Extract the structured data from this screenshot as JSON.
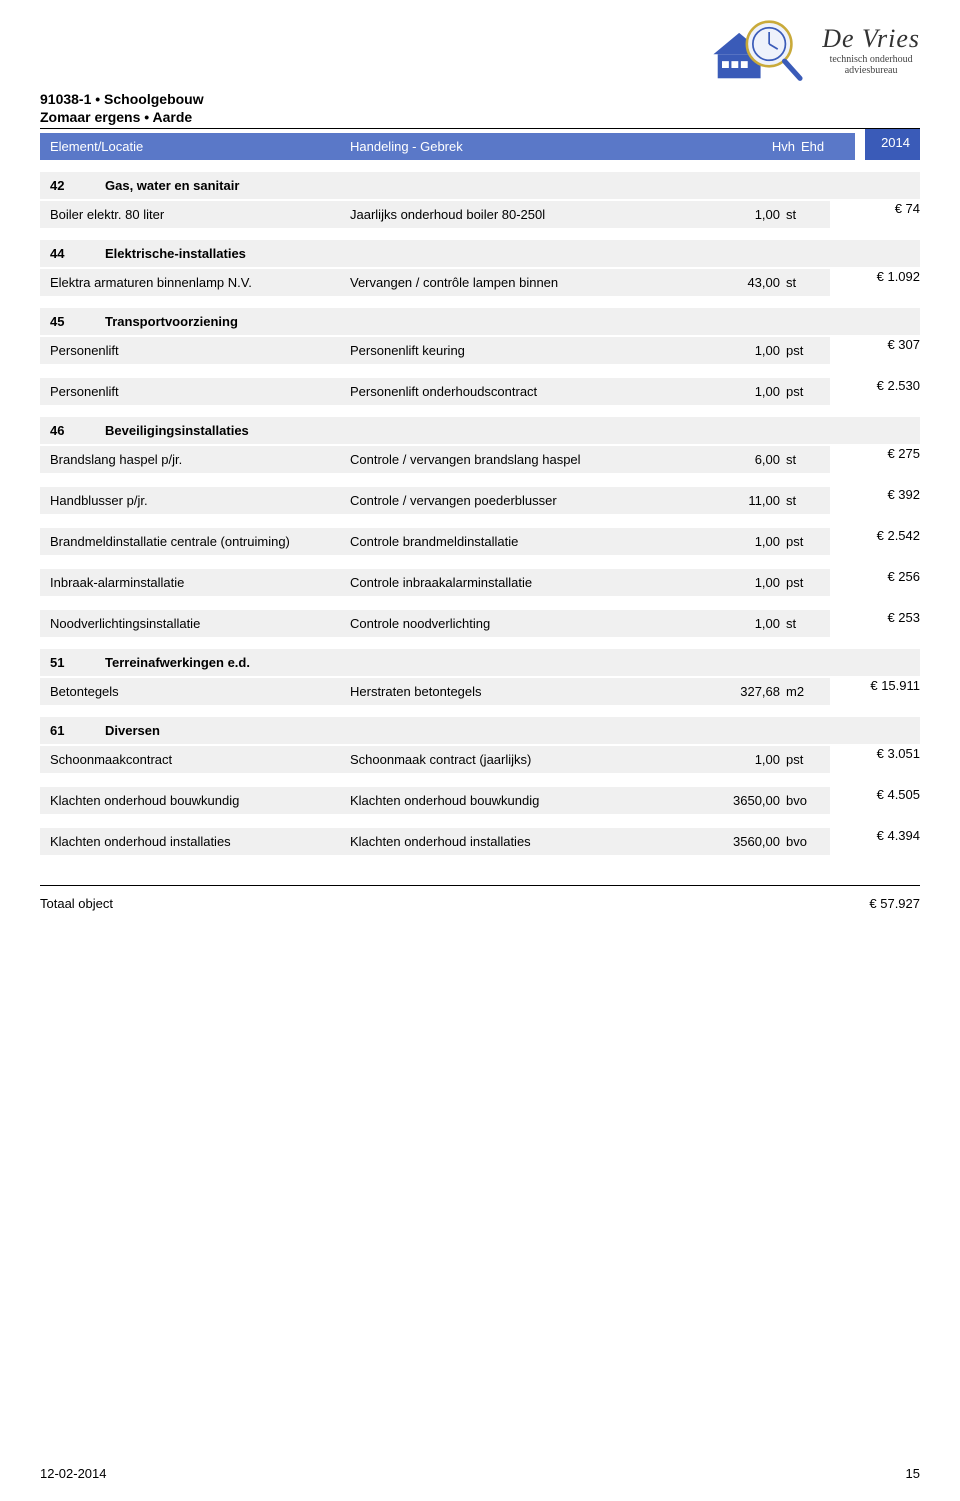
{
  "header": {
    "line1": "91038-1 • Schoolgebouw",
    "line2": "Zomaar ergens • Aarde"
  },
  "logo": {
    "brand": "De Vries",
    "sub1": "technisch onderhoud",
    "sub2": "adviesbureau",
    "house_fill": "#3a5bb8",
    "house_stroke": "#3a5bb8",
    "glass_rim": "#c9aa3a",
    "clock_face": "#eef2fb"
  },
  "columns": {
    "c1": "Element/Locatie",
    "c2": "Handeling - Gebrek",
    "c3": "Hvh",
    "c4": "Ehd",
    "year": "2014"
  },
  "colors": {
    "header_bg": "#5a78c8",
    "year_bg": "#3a5bb8",
    "row_bg": "#f0f0f0"
  },
  "groups": [
    {
      "code": "42",
      "title": "Gas, water en sanitair",
      "rows": [
        {
          "element": "Boiler elektr. 80 liter",
          "handling": "Jaarlijks onderhoud boiler 80-250l",
          "qty": "1,00",
          "unit": "st",
          "price": "€ 74"
        }
      ]
    },
    {
      "code": "44",
      "title": "Elektrische-installaties",
      "rows": [
        {
          "element": "Elektra armaturen binnenlamp N.V.",
          "handling": "Vervangen / contrôle lampen binnen",
          "qty": "43,00",
          "unit": "st",
          "price": "€ 1.092"
        }
      ]
    },
    {
      "code": "45",
      "title": "Transportvoorziening",
      "rows": [
        {
          "element": "Personenlift",
          "handling": "Personenlift keuring",
          "qty": "1,00",
          "unit": "pst",
          "price": "€ 307"
        },
        {
          "element": "Personenlift",
          "handling": "Personenlift onderhoudscontract",
          "qty": "1,00",
          "unit": "pst",
          "price": "€ 2.530"
        }
      ]
    },
    {
      "code": "46",
      "title": "Beveiligingsinstallaties",
      "rows": [
        {
          "element": "Brandslang haspel p/jr.",
          "handling": "Controle / vervangen brandslang haspel",
          "qty": "6,00",
          "unit": "st",
          "price": "€ 275"
        },
        {
          "element": "Handblusser p/jr.",
          "handling": "Controle / vervangen poederblusser",
          "qty": "11,00",
          "unit": "st",
          "price": "€ 392"
        },
        {
          "element": "Brandmeldinstallatie centrale (ontruiming)",
          "handling": "Controle brandmeldinstallatie",
          "qty": "1,00",
          "unit": "pst",
          "price": "€ 2.542"
        },
        {
          "element": "Inbraak-alarminstallatie",
          "handling": "Controle inbraakalarminstallatie",
          "qty": "1,00",
          "unit": "pst",
          "price": "€ 256"
        },
        {
          "element": "Noodverlichtingsinstallatie",
          "handling": "Controle noodverlichting",
          "qty": "1,00",
          "unit": "st",
          "price": "€ 253"
        }
      ]
    },
    {
      "code": "51",
      "title": "Terreinafwerkingen e.d.",
      "rows": [
        {
          "element": "Betontegels",
          "handling": "Herstraten betontegels",
          "qty": "327,68",
          "unit": "m2",
          "price": "€ 15.911"
        }
      ]
    },
    {
      "code": "61",
      "title": "Diversen",
      "rows": [
        {
          "element": "Schoonmaakcontract",
          "handling": "Schoonmaak contract (jaarlijks)",
          "qty": "1,00",
          "unit": "pst",
          "price": "€ 3.051"
        },
        {
          "element": "Klachten onderhoud bouwkundig",
          "handling": "Klachten onderhoud bouwkundig",
          "qty": "3650,00",
          "unit": "bvo",
          "price": "€ 4.505"
        },
        {
          "element": "Klachten onderhoud installaties",
          "handling": "Klachten onderhoud installaties",
          "qty": "3560,00",
          "unit": "bvo",
          "price": "€ 4.394"
        }
      ]
    }
  ],
  "total": {
    "label": "Totaal object",
    "value": "€ 57.927"
  },
  "footer": {
    "date": "12-02-2014",
    "page": "15"
  }
}
